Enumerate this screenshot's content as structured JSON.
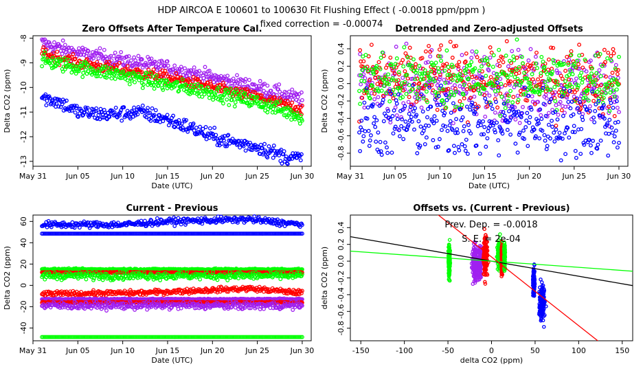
{
  "header": {
    "title": "HDP    AIRCOA E    100601 to 100630    Fit Flushing Effect ( -0.0018 ppm/ppm )",
    "subtitle": "fixed correction = -0.00074"
  },
  "colors": {
    "blue": "#0000ff",
    "red": "#ff0000",
    "green": "#00ff00",
    "purple": "#a020f0",
    "black": "#000000"
  },
  "chart_data": [
    {
      "type": "scatter",
      "title": "Zero Offsets After Temperature Cal.",
      "xlabel": "Date (UTC)",
      "ylabel": "Delta CO2 (ppm)",
      "x_type": "date",
      "x_ticks": [
        "May 31",
        "Jun 05",
        "Jun 10",
        "Jun 15",
        "Jun 20",
        "Jun 25",
        "Jun 30"
      ],
      "xlim": [
        "2010-05-31",
        "2010-07-01"
      ],
      "ylim": [
        -13.2,
        -7.9
      ],
      "y_ticks": [
        -8,
        -9,
        -10,
        -11,
        -12,
        -13
      ],
      "series": [
        {
          "color": "purple",
          "x": [
            "2010-06-01",
            "2010-06-05",
            "2010-06-10",
            "2010-06-15",
            "2010-06-20",
            "2010-06-25",
            "2010-06-30"
          ],
          "y": [
            -8.2,
            -8.6,
            -8.9,
            -9.2,
            -9.6,
            -10.0,
            -10.5
          ],
          "spread": 0.15
        },
        {
          "color": "red",
          "x": [
            "2010-06-01",
            "2010-06-05",
            "2010-06-10",
            "2010-06-15",
            "2010-06-20",
            "2010-06-25",
            "2010-06-30"
          ],
          "y": [
            -8.6,
            -9.0,
            -9.3,
            -9.6,
            -10.0,
            -10.4,
            -10.9
          ],
          "spread": 0.12
        },
        {
          "color": "green",
          "x": [
            "2010-06-01",
            "2010-06-05",
            "2010-06-10",
            "2010-06-15",
            "2010-06-20",
            "2010-06-25",
            "2010-06-30"
          ],
          "y": [
            -8.9,
            -9.2,
            -9.5,
            -9.9,
            -10.2,
            -10.6,
            -11.2
          ],
          "spread": 0.15
        },
        {
          "color": "blue",
          "x": [
            "2010-06-01",
            "2010-06-03",
            "2010-06-05",
            "2010-06-08",
            "2010-06-12",
            "2010-06-15",
            "2010-06-18",
            "2010-06-20",
            "2010-06-22",
            "2010-06-25",
            "2010-06-28",
            "2010-06-30"
          ],
          "y": [
            -10.4,
            -10.6,
            -11.0,
            -11.1,
            -11.0,
            -11.3,
            -11.7,
            -12.0,
            -12.2,
            -12.4,
            -12.8,
            -12.9
          ],
          "spread": 0.15
        }
      ]
    },
    {
      "type": "scatter",
      "title": "Detrended and Zero-adjusted Offsets",
      "xlabel": "Date (UTC)",
      "ylabel": "Delta CO2 (ppm)",
      "x_type": "date",
      "x_ticks": [
        "May 31",
        "Jun 05",
        "Jun 10",
        "Jun 15",
        "Jun 20",
        "Jun 25",
        "Jun 30"
      ],
      "xlim": [
        "2010-05-31",
        "2010-07-01"
      ],
      "ylim": [
        -0.95,
        0.55
      ],
      "y_ticks": [
        0.4,
        0.2,
        0.0,
        -0.2,
        -0.4,
        -0.6,
        -0.8
      ],
      "series": [
        {
          "color": "purple",
          "x": [
            "2010-06-01",
            "2010-06-30"
          ],
          "y": [
            -0.02,
            -0.02
          ],
          "spread": 0.2
        },
        {
          "color": "red",
          "x": [
            "2010-06-01",
            "2010-06-30"
          ],
          "y": [
            0.05,
            0.05
          ],
          "spread": 0.2
        },
        {
          "color": "green",
          "x": [
            "2010-06-01",
            "2010-06-30"
          ],
          "y": [
            0.05,
            0.05
          ],
          "spread": 0.17
        },
        {
          "color": "blue",
          "x": [
            "2010-06-01",
            "2010-06-30"
          ],
          "y": [
            -0.45,
            -0.45
          ],
          "spread": 0.2
        }
      ]
    },
    {
      "type": "scatter",
      "title": "Current - Previous",
      "xlabel": "Date (UTC)",
      "ylabel": "Delta CO2 (ppm)",
      "x_type": "date",
      "x_ticks": [
        "May 31",
        "Jun 05",
        "Jun 10",
        "Jun 15",
        "Jun 20",
        "Jun 25",
        "Jun 30"
      ],
      "xlim": [
        "2010-05-31",
        "2010-07-01"
      ],
      "ylim": [
        -52,
        66
      ],
      "y_ticks": [
        60,
        40,
        20,
        0,
        -20,
        -40
      ],
      "series": [
        {
          "color": "blue",
          "x": [
            "2010-06-01",
            "2010-06-10",
            "2010-06-15",
            "2010-06-24",
            "2010-06-30"
          ],
          "y": [
            57,
            57,
            60,
            62,
            57
          ],
          "spread": 1.5
        },
        {
          "color": "blue",
          "x": [
            "2010-06-01",
            "2010-06-30"
          ],
          "y": [
            48.5,
            48.5
          ],
          "spread": 0
        },
        {
          "color": "green",
          "x": [
            "2010-06-01",
            "2010-06-30"
          ],
          "y": [
            15,
            15
          ],
          "spread": 0.4
        },
        {
          "color": "red",
          "x": [
            "2010-06-01",
            "2010-06-30"
          ],
          "y": [
            12,
            12
          ],
          "spread": 0.3
        },
        {
          "color": "green",
          "x": [
            "2010-06-01",
            "2010-06-30"
          ],
          "y": [
            9,
            9
          ],
          "spread": 1.8
        },
        {
          "color": "red",
          "x": [
            "2010-06-01",
            "2010-06-12",
            "2010-06-24",
            "2010-06-30"
          ],
          "y": [
            -8,
            -7,
            -3,
            -7
          ],
          "spread": 1.2
        },
        {
          "color": "purple",
          "x": [
            "2010-06-01",
            "2010-06-30"
          ],
          "y": [
            -13,
            -13
          ],
          "spread": 0.3
        },
        {
          "color": "red",
          "x": [
            "2010-06-01",
            "2010-06-30"
          ],
          "y": [
            -16,
            -16
          ],
          "spread": 0.3
        },
        {
          "color": "purple",
          "x": [
            "2010-06-01",
            "2010-06-30"
          ],
          "y": [
            -19,
            -19
          ],
          "spread": 1.8
        },
        {
          "color": "green",
          "x": [
            "2010-06-01",
            "2010-06-30"
          ],
          "y": [
            -48.5,
            -48.5
          ],
          "spread": 0
        }
      ]
    },
    {
      "type": "scatter",
      "title": "Offsets vs. (Current - Previous)",
      "xlabel": "delta CO2 (ppm)",
      "ylabel": "delta CO2 (ppm)",
      "xlim": [
        -162,
        162
      ],
      "ylim": [
        -0.95,
        0.55
      ],
      "x_ticks": [
        -150,
        -100,
        -50,
        0,
        50,
        100,
        150
      ],
      "y_ticks": [
        0.4,
        0.2,
        0.0,
        -0.2,
        -0.4,
        -0.6,
        -0.8
      ],
      "annotations": [
        "Prev. Dep. =  -0.0018",
        "S. E. =  2e-04"
      ],
      "clusters": [
        {
          "color": "green",
          "x": -48.5,
          "xspread": 0.8,
          "y": 0.0,
          "yspread": 0.17
        },
        {
          "color": "purple",
          "x": -19,
          "xspread": 2.5,
          "y": -0.02,
          "yspread": 0.2
        },
        {
          "color": "purple",
          "x": -13,
          "xspread": 1,
          "y": 0.0,
          "yspread": 0.15
        },
        {
          "color": "red",
          "x": -7,
          "xspread": 2,
          "y": 0.05,
          "yspread": 0.2
        },
        {
          "color": "green",
          "x": 9,
          "xspread": 2,
          "y": 0.08,
          "yspread": 0.15
        },
        {
          "color": "red",
          "x": 12,
          "xspread": 0.5,
          "y": 0.0,
          "yspread": 0.15
        },
        {
          "color": "green",
          "x": 15,
          "xspread": 0.5,
          "y": 0.05,
          "yspread": 0.12
        },
        {
          "color": "blue",
          "x": 48.5,
          "xspread": 0.8,
          "y": -0.25,
          "yspread": 0.12
        },
        {
          "color": "blue",
          "x": 58,
          "xspread": 3,
          "y": -0.5,
          "yspread": 0.18
        }
      ],
      "lines": [
        {
          "color": "black",
          "slope": -0.0018,
          "intercept": 0.0
        },
        {
          "color": "green",
          "slope": -0.00074,
          "intercept": 0.0
        },
        {
          "color": "red",
          "slope": -0.0082,
          "intercept": 0.05
        }
      ]
    }
  ]
}
